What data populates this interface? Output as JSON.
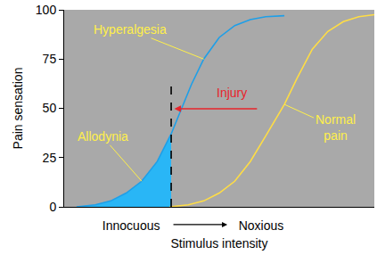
{
  "chart_data": {
    "type": "line",
    "xlabel": "Stimulus intensity",
    "ylabel": "Pain sensation",
    "xlim": [
      0,
      100
    ],
    "ylim": [
      0,
      100
    ],
    "xticks": [
      {
        "value": 21.6,
        "label": "Innocuous"
      },
      {
        "value": 63.5,
        "label": "Noxious"
      }
    ],
    "yticks": [
      0,
      25,
      50,
      75,
      100
    ],
    "grid": false,
    "series": [
      {
        "name": "Allodynia",
        "type": "area",
        "color": "#29b6f6",
        "x": [
          4,
          10,
          15,
          20,
          25,
          30,
          34.5
        ],
        "values": [
          0,
          1,
          3,
          7,
          13,
          23,
          37
        ]
      },
      {
        "name": "Hyperalgesia",
        "type": "line",
        "color": "#1e9fe8",
        "x": [
          4,
          10,
          15,
          20,
          25,
          30,
          34.5,
          38,
          41,
          45,
          50,
          55,
          60,
          65,
          71
        ],
        "values": [
          0,
          1,
          3,
          7,
          13,
          23,
          37,
          50,
          62,
          75,
          86,
          92,
          95,
          96.5,
          97
        ]
      },
      {
        "name": "Normal pain",
        "type": "line",
        "color": "#ffdd44",
        "x": [
          34,
          40,
          45,
          50,
          55,
          60,
          65,
          71,
          75,
          80,
          85,
          90,
          95,
          100
        ],
        "values": [
          0,
          1,
          3,
          7,
          13,
          23,
          36,
          52,
          65,
          80,
          89,
          94,
          96.5,
          97.5
        ]
      },
      {
        "type": "line",
        "line_style": "dashed",
        "color": "#000000",
        "x": [
          34.5,
          34.5
        ],
        "values": [
          0,
          64
        ]
      }
    ],
    "annotations": [
      {
        "text": "Injury",
        "color": "#e8242b"
      }
    ]
  }
}
